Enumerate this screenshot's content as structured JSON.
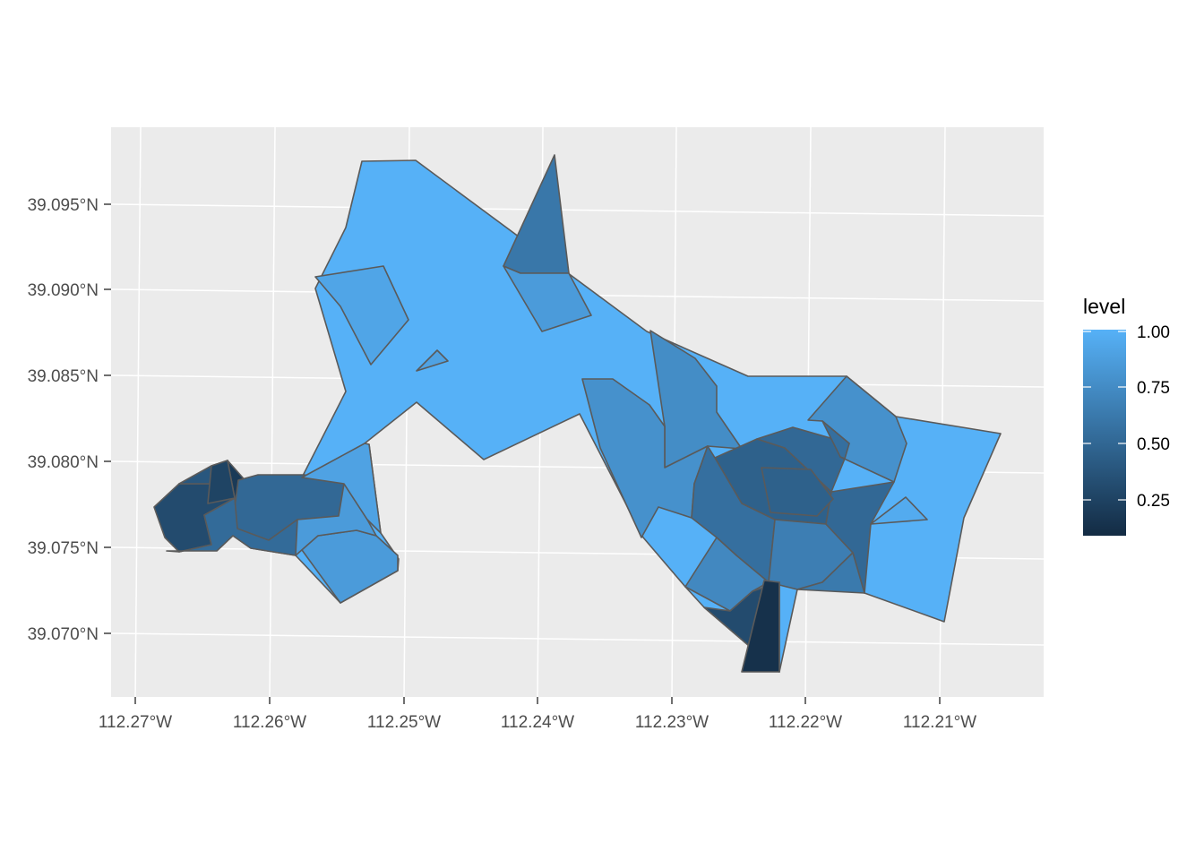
{
  "map": {
    "x_ticks": [
      "112.27°W",
      "112.26°W",
      "112.25°W",
      "112.24°W",
      "112.23°W",
      "112.22°W",
      "112.21°W"
    ],
    "y_ticks": [
      "39.070°N",
      "39.075°N",
      "39.080°N",
      "39.085°N",
      "39.090°N",
      "39.095°N"
    ],
    "legend": {
      "title": "level",
      "labels": [
        "1.00",
        "0.75",
        "0.50",
        "0.25"
      ],
      "range": [
        0.08,
        1.0
      ],
      "low_color": "#132B43",
      "high_color": "#56B1F7"
    },
    "panel_color": "#EBEBEB",
    "outline_color": "#5a5a5a",
    "region_levels": [
      1.0,
      0.92,
      0.6,
      0.85,
      0.9,
      0.75,
      0.45,
      0.18,
      0.3,
      0.78,
      0.5,
      0.78,
      0.96,
      0.85,
      0.5,
      0.38,
      0.25,
      0.52,
      0.55,
      0.72,
      0.65,
      0.3,
      0.5,
      0.62,
      0.55,
      0.45,
      0.12,
      0.85,
      0.9
    ]
  }
}
